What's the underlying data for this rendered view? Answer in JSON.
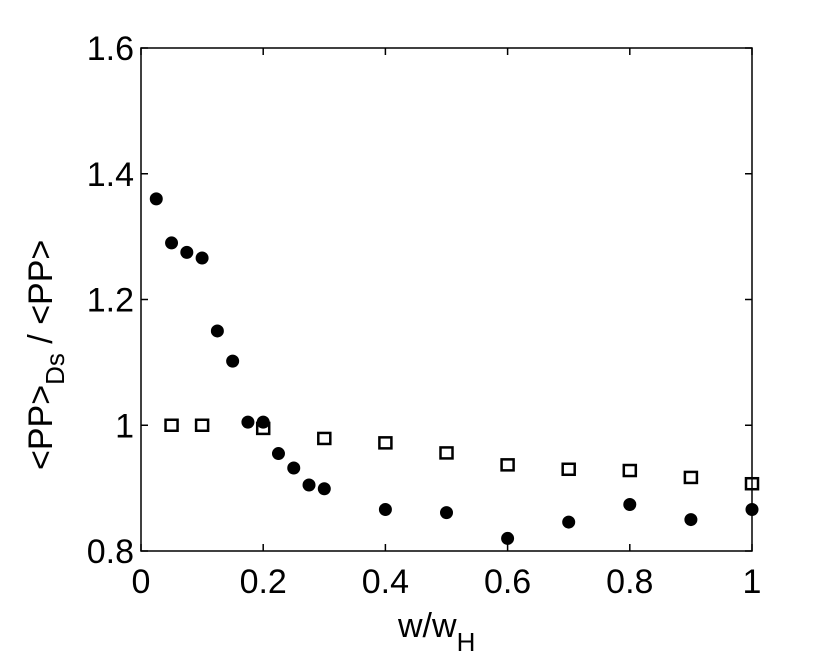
{
  "chart_data": {
    "type": "scatter",
    "title": "",
    "xlabel": {
      "main": "w/w",
      "sub": "H"
    },
    "ylabel": {
      "p1": "<PP>",
      "sub": "Ds",
      "p2": " / <PP>"
    },
    "xlim": [
      0,
      1
    ],
    "ylim": [
      0.8,
      1.6
    ],
    "grid": false,
    "xticks": [
      0,
      0.2,
      0.4,
      0.6,
      0.8,
      1
    ],
    "xtick_labels": [
      "0",
      "0.2",
      "0.4",
      "0.6",
      "0.8",
      "1"
    ],
    "yticks": [
      0.8,
      1.0,
      1.2,
      1.4,
      1.6
    ],
    "ytick_labels": [
      "0.8",
      "1",
      "1.2",
      "1.4",
      "1.6"
    ],
    "series": [
      {
        "marker": "filled-circle",
        "color": "#000000",
        "x": [
          0.025,
          0.05,
          0.075,
          0.1,
          0.125,
          0.15,
          0.175,
          0.2,
          0.225,
          0.25,
          0.275,
          0.3,
          0.4,
          0.5,
          0.6,
          0.7,
          0.8,
          0.9,
          1.0
        ],
        "y": [
          1.36,
          1.29,
          1.275,
          1.266,
          1.15,
          1.102,
          1.005,
          1.005,
          0.955,
          0.932,
          0.905,
          0.899,
          0.866,
          0.861,
          0.82,
          0.846,
          0.874,
          0.85,
          0.866
        ]
      },
      {
        "marker": "open-square",
        "color": "#000000",
        "x": [
          0.05,
          0.1,
          0.2,
          0.3,
          0.4,
          0.5,
          0.6,
          0.7,
          0.8,
          0.9,
          1.0
        ],
        "y": [
          1.0,
          1.0,
          0.995,
          0.979,
          0.972,
          0.956,
          0.937,
          0.93,
          0.928,
          0.917,
          0.907
        ]
      }
    ]
  }
}
